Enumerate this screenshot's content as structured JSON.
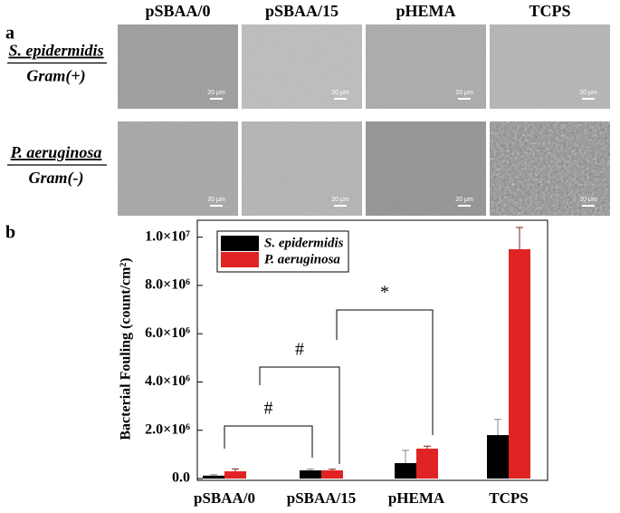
{
  "panel_a": {
    "label": "a",
    "columns": [
      "pSBAA/0",
      "pSBAA/15",
      "pHEMA",
      "TCPS"
    ],
    "rows": [
      {
        "species": "S. epidermidis",
        "gram": "Gram(+)"
      },
      {
        "species": "P. aeruginosa",
        "gram": "Gram(-)"
      }
    ],
    "scale_bar": "20 μm"
  },
  "chart_data": {
    "type": "bar",
    "panel_label": "b",
    "ylabel": "Bacterial Fouling (count/cm²)",
    "categories": [
      "pSBAA/0",
      "pSBAA/15",
      "pHEMA",
      "TCPS"
    ],
    "series": [
      {
        "name": "S. epidermidis",
        "color": "#000000",
        "values": [
          120000,
          340000,
          640000,
          1800000
        ],
        "errors": [
          40000,
          50000,
          530000,
          650000
        ]
      },
      {
        "name": "P. aeruginosa",
        "color": "#e02424",
        "values": [
          300000,
          340000,
          1240000,
          9500000
        ],
        "errors": [
          100000,
          50000,
          100000,
          900000
        ]
      }
    ],
    "ylim": [
      0,
      10700000
    ],
    "yticks": [
      {
        "value": 0,
        "label": "0.0"
      },
      {
        "value": 2000000,
        "label": "2.0×10⁶"
      },
      {
        "value": 4000000,
        "label": "4.0×10⁶"
      },
      {
        "value": 6000000,
        "label": "6.0×10⁶"
      },
      {
        "value": 8000000,
        "label": "8.0×10⁶"
      },
      {
        "value": 10000000,
        "label": "1.0×10⁷"
      }
    ],
    "legend": "upper left",
    "annotations": [
      "#",
      "#",
      "*"
    ]
  }
}
